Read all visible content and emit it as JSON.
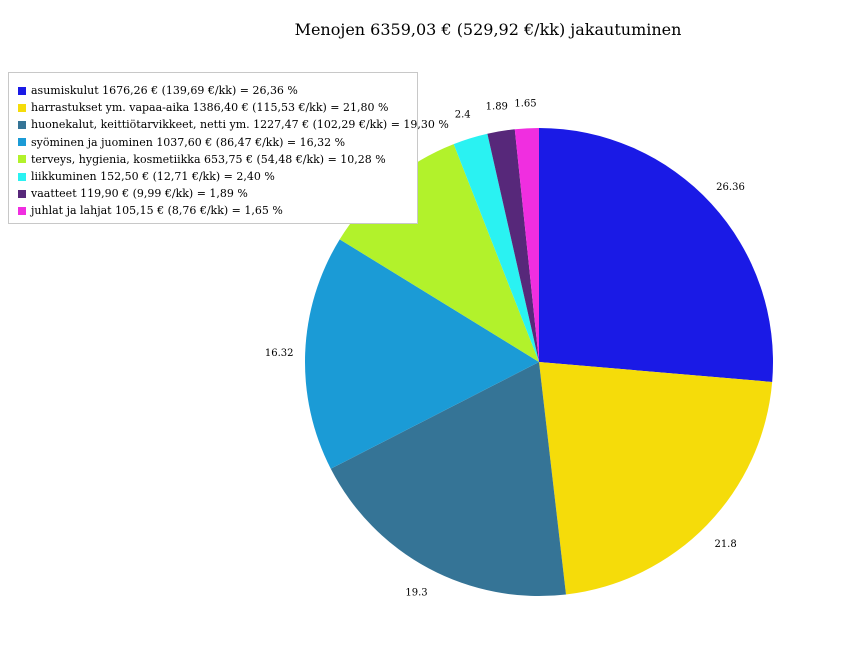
{
  "chart_data": {
    "type": "pie",
    "title": "Menojen 6359,03 € (529,92 €/kk) jakautuminen",
    "slices": [
      {
        "legend": "asumiskulut 1676,26 € (139,69 €/kk) = 26,36 %",
        "value": 26.36,
        "label": "26.36",
        "color": "#1a1ae6"
      },
      {
        "legend": "harrastukset ym. vapaa-aika 1386,40 € (115,53 €/kk) = 21,80 %",
        "value": 21.8,
        "label": "21.8",
        "color": "#f5dc0a"
      },
      {
        "legend": "huonekalut, keittiötarvikkeet, netti ym. 1227,47 € (102,29 €/kk) = 19,30 %",
        "value": 19.3,
        "label": "19.3",
        "color": "#357496"
      },
      {
        "legend": "syöminen ja juominen 1037,60 € (86,47 €/kk) = 16,32 %",
        "value": 16.32,
        "label": "16.32",
        "color": "#1b9bd6"
      },
      {
        "legend": "terveys, hygienia, kosmetiikka 653,75 € (54,48 €/kk) = 10,28 %",
        "value": 10.28,
        "label": "10.28",
        "color": "#b2f22b"
      },
      {
        "legend": "liikkuminen 152,50 € (12,71 €/kk) = 2,40 %",
        "value": 2.4,
        "label": "2.4",
        "color": "#2af2f2"
      },
      {
        "legend": "vaatteet 119,90 € (9,99 €/kk) = 1,89 %",
        "value": 1.89,
        "label": "1.89",
        "color": "#57287a"
      },
      {
        "legend": "juhlat ja lahjat 105,15 € (8,76 €/kk) = 1,65 %",
        "value": 1.65,
        "label": "1.65",
        "color": "#f02ee0"
      }
    ],
    "legend_position": "top-left"
  }
}
